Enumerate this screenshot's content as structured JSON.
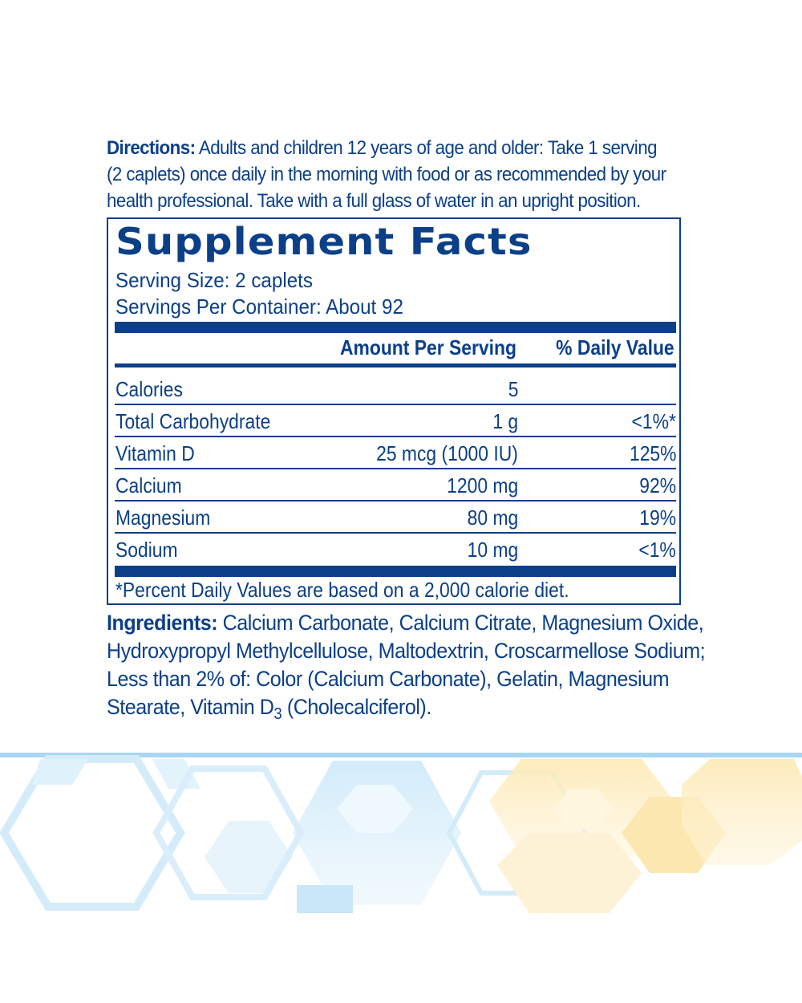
{
  "directions": {
    "label": "Directions:",
    "line1": " Adults and children 12 years of age and older: Take 1 serving",
    "line2": "(2 caplets) once daily in the morning with food or as recommended by your",
    "line3": "health professional. Take with a full glass of water in an upright position."
  },
  "facts": {
    "title": "Supplement Facts",
    "serving_size": "Serving Size: 2 caplets",
    "servings_per_container": "Servings Per Container: About 92",
    "col_amount": "Amount Per Serving",
    "col_dv": "% Daily Value",
    "rows": [
      {
        "name": "Calories",
        "amount": "5",
        "dv": ""
      },
      {
        "name": "Total Carbohydrate",
        "amount": "1 g",
        "dv": "<1%*"
      },
      {
        "name": "Vitamin D",
        "amount": "25 mcg (1000 IU)",
        "dv": "125%"
      },
      {
        "name": "Calcium",
        "amount": "1200 mg",
        "dv": "92%"
      },
      {
        "name": "Magnesium",
        "amount": "80 mg",
        "dv": "19%"
      },
      {
        "name": "Sodium",
        "amount": "10 mg",
        "dv": "<1%"
      }
    ],
    "footnote": "*Percent Daily Values are based on a 2,000 calorie diet."
  },
  "ingredients": {
    "label": "Ingredients:",
    "line1": " Calcium Carbonate, Calcium Citrate, Magnesium Oxide,",
    "line2": "Hydroxypropyl Methylcellulose, Maltodextrin, Croscarmellose Sodium;",
    "line3": "Less than 2% of: Color (Calcium Carbonate), Gelatin, Magnesium",
    "line4a": "Stearate, Vitamin D",
    "line4sub": "3",
    "line4b": " (Cholecalciferol)."
  },
  "colors": {
    "text": "#0b3f88",
    "pattern_blue": "#bfe3f7",
    "pattern_yellow": "#fbe7b0",
    "top_stripe": "#a9d6f2"
  }
}
